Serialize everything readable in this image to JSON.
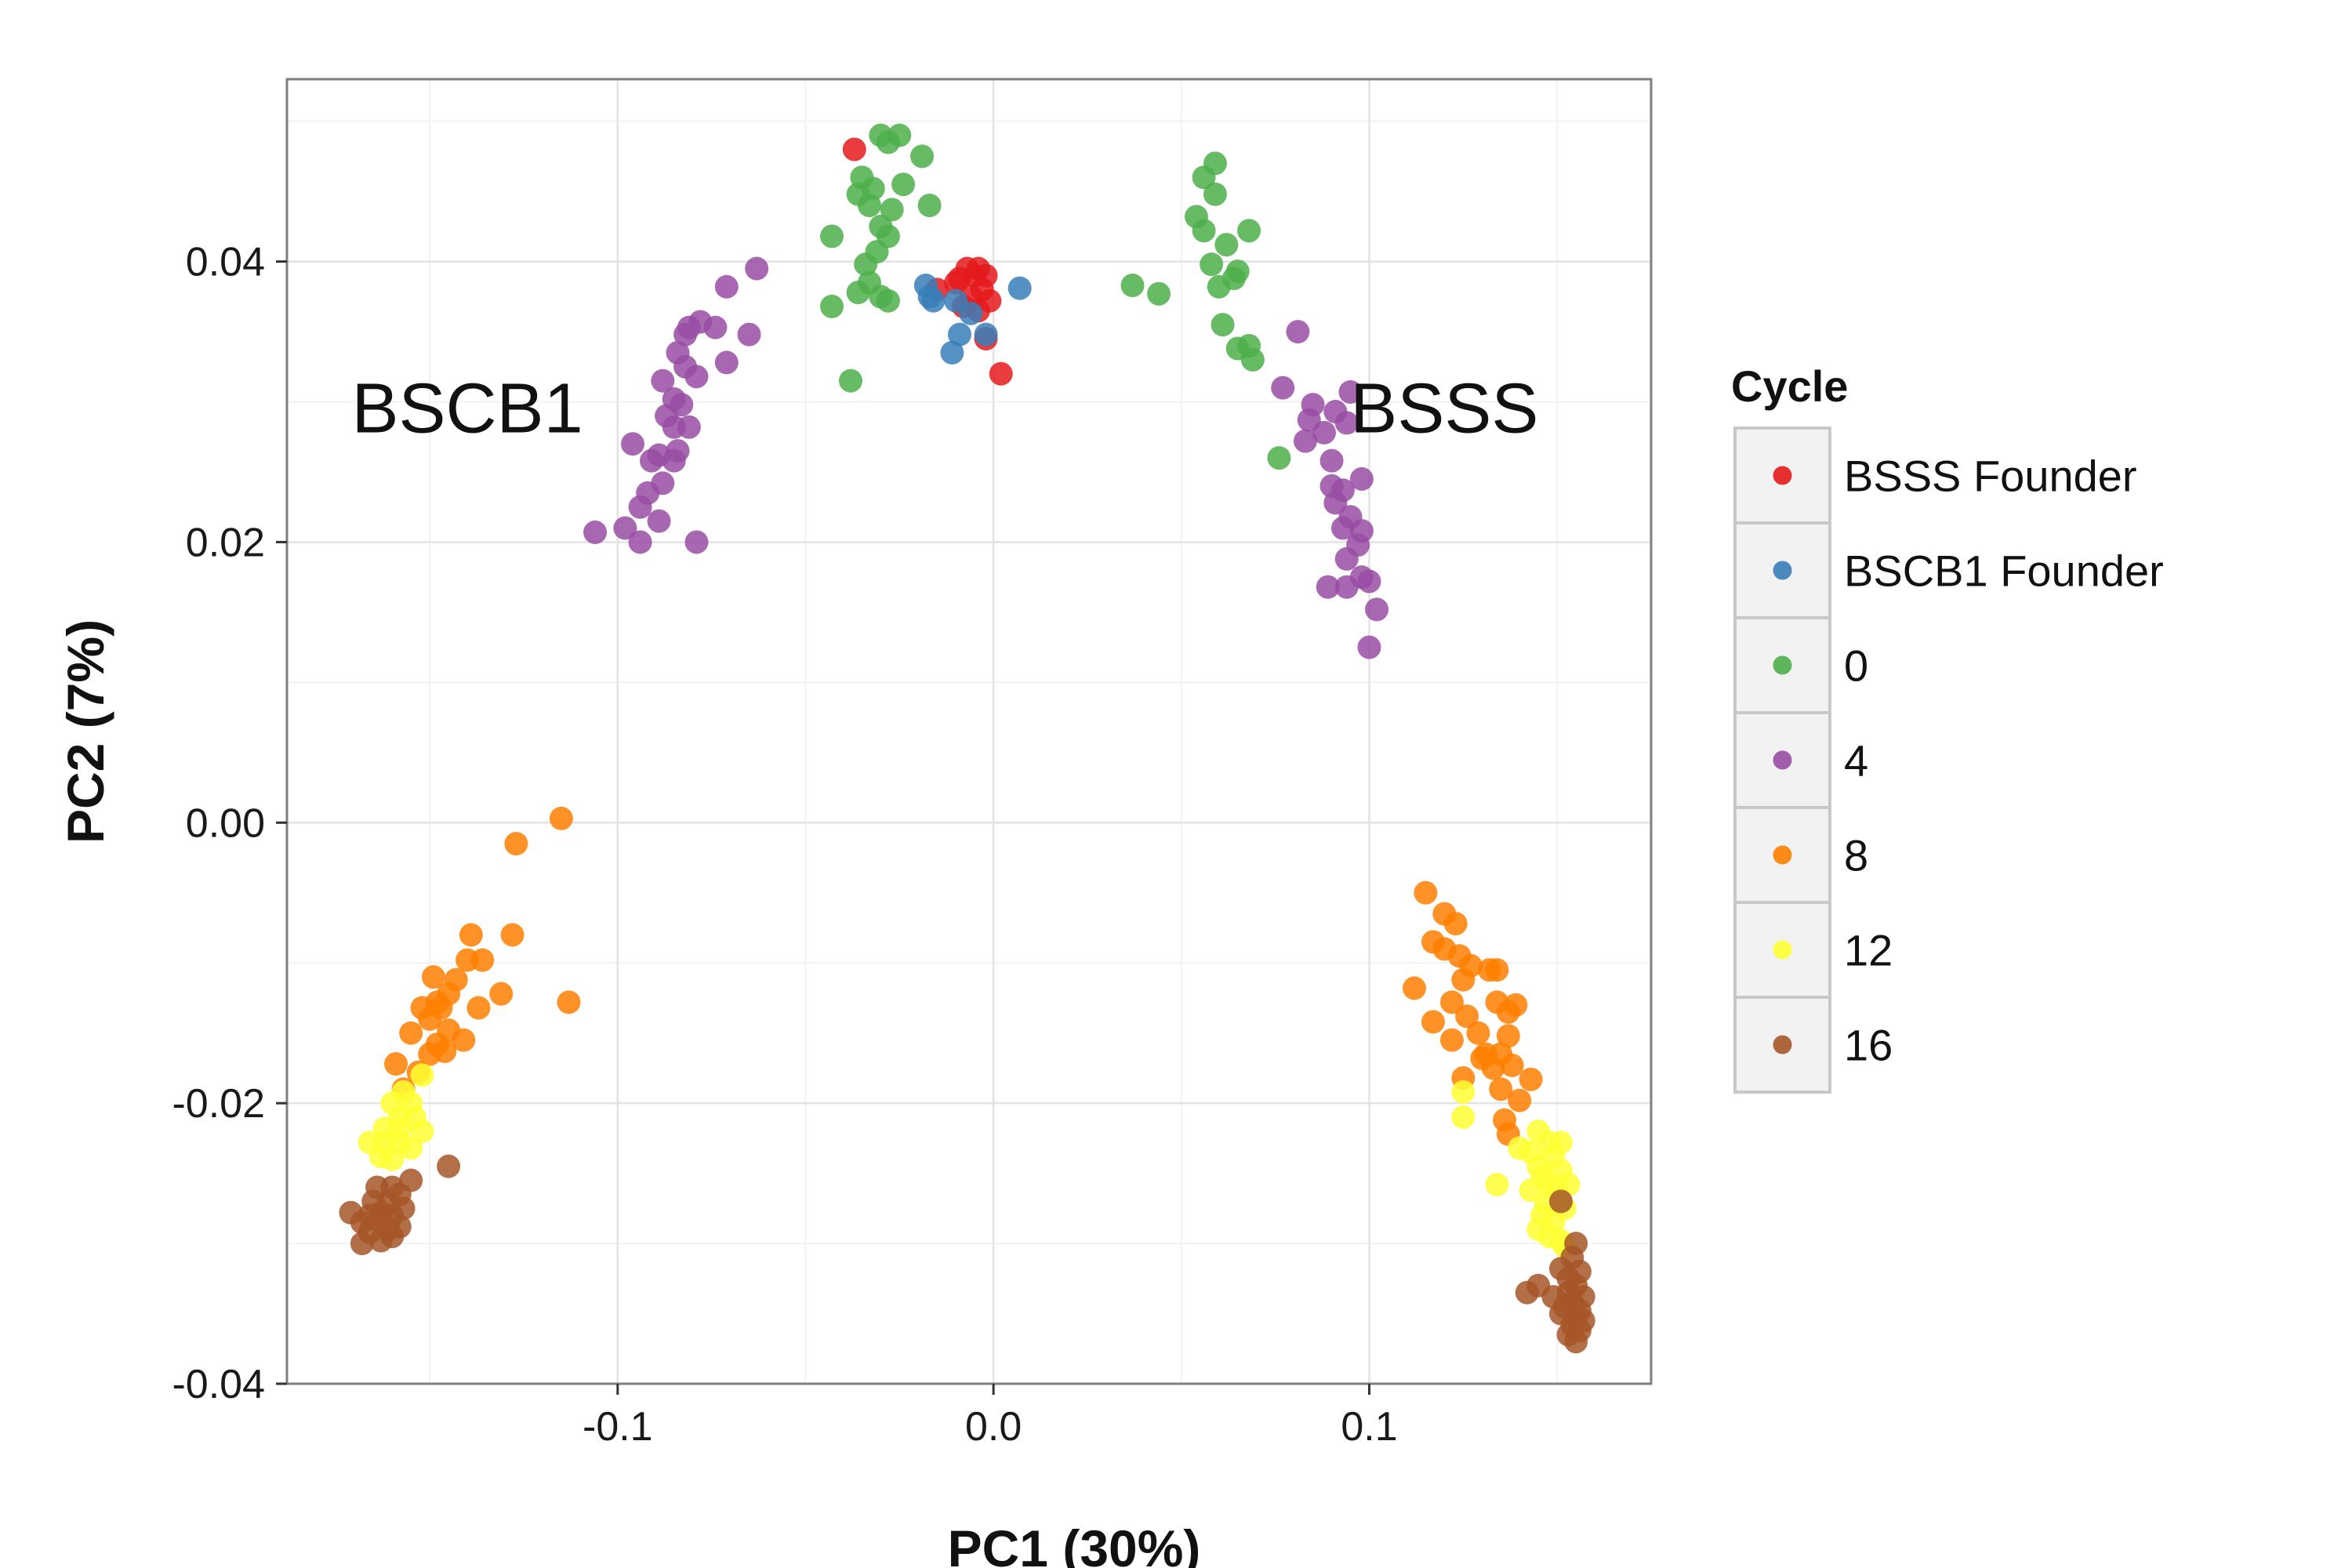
{
  "chart_data": {
    "type": "scatter",
    "title": "",
    "xlabel": "PC1 (30%)",
    "ylabel": "PC2 (7%)",
    "xlim": [
      -0.188,
      0.175
    ],
    "ylim": [
      -0.04,
      0.053
    ],
    "x_ticks": [
      {
        "value": -0.1,
        "label": "-0.1"
      },
      {
        "value": 0.0,
        "label": "0.0"
      },
      {
        "value": 0.1,
        "label": "0.1"
      }
    ],
    "y_ticks": [
      {
        "value": -0.04,
        "label": "-0.04"
      },
      {
        "value": -0.02,
        "label": "-0.02"
      },
      {
        "value": 0.0,
        "label": "0.00"
      },
      {
        "value": 0.02,
        "label": "0.02"
      },
      {
        "value": 0.04,
        "label": "0.04"
      }
    ],
    "grid": true,
    "legend": {
      "title": "Cycle",
      "placement": "right"
    },
    "annotations": [
      {
        "text": "BSCB1",
        "x": -0.14,
        "y": 0.0295
      },
      {
        "text": "BSSS",
        "x": 0.12,
        "y": 0.0295
      }
    ],
    "series": [
      {
        "name": "BSSS Founder",
        "color": "#e41a1c",
        "points": [
          [
            -0.037,
            0.048
          ],
          [
            -0.015,
            0.038
          ],
          [
            -0.01,
            0.0385
          ],
          [
            -0.007,
            0.0395
          ],
          [
            -0.005,
            0.039
          ],
          [
            -0.004,
            0.0395
          ],
          [
            -0.003,
            0.038
          ],
          [
            -0.002,
            0.039
          ],
          [
            -0.006,
            0.0375
          ],
          [
            -0.004,
            0.0365
          ],
          [
            -0.008,
            0.0368
          ],
          [
            -0.001,
            0.0372
          ],
          [
            -0.002,
            0.0345
          ],
          [
            0.002,
            0.032
          ],
          [
            -0.009,
            0.0388
          ]
        ]
      },
      {
        "name": "BSCB1 Founder",
        "color": "#377eb8",
        "points": [
          [
            -0.018,
            0.0383
          ],
          [
            -0.017,
            0.0375
          ],
          [
            -0.011,
            0.0335
          ],
          [
            -0.009,
            0.0348
          ],
          [
            -0.006,
            0.0363
          ],
          [
            -0.002,
            0.0348
          ],
          [
            0.007,
            0.0381
          ],
          [
            -0.01,
            0.0372
          ],
          [
            -0.016,
            0.0372
          ]
        ]
      },
      {
        "name": "0",
        "color": "#4daf4a",
        "points": [
          [
            -0.03,
            0.049
          ],
          [
            -0.028,
            0.0485
          ],
          [
            -0.025,
            0.049
          ],
          [
            -0.019,
            0.0475
          ],
          [
            -0.024,
            0.0455
          ],
          [
            -0.035,
            0.046
          ],
          [
            -0.036,
            0.0448
          ],
          [
            -0.033,
            0.044
          ],
          [
            -0.027,
            0.0437
          ],
          [
            -0.017,
            0.044
          ],
          [
            -0.03,
            0.0425
          ],
          [
            -0.028,
            0.0418
          ],
          [
            -0.031,
            0.0407
          ],
          [
            -0.043,
            0.0418
          ],
          [
            -0.034,
            0.0398
          ],
          [
            -0.033,
            0.0385
          ],
          [
            -0.03,
            0.0375
          ],
          [
            -0.028,
            0.0372
          ],
          [
            -0.036,
            0.0378
          ],
          [
            -0.043,
            0.0368
          ],
          [
            -0.038,
            0.0315
          ],
          [
            -0.032,
            0.0452
          ],
          [
            0.059,
            0.047
          ],
          [
            0.056,
            0.046
          ],
          [
            0.059,
            0.0448
          ],
          [
            0.054,
            0.0432
          ],
          [
            0.056,
            0.0422
          ],
          [
            0.068,
            0.0422
          ],
          [
            0.062,
            0.0412
          ],
          [
            0.058,
            0.0398
          ],
          [
            0.064,
            0.0388
          ],
          [
            0.065,
            0.0393
          ],
          [
            0.06,
            0.0382
          ],
          [
            0.037,
            0.0383
          ],
          [
            0.044,
            0.0377
          ],
          [
            0.061,
            0.0355
          ],
          [
            0.065,
            0.0338
          ],
          [
            0.068,
            0.034
          ],
          [
            0.069,
            0.033
          ],
          [
            0.076,
            0.026
          ]
        ]
      },
      {
        "name": "4",
        "color": "#984ea3",
        "points": [
          [
            -0.063,
            0.0395
          ],
          [
            -0.071,
            0.0382
          ],
          [
            -0.078,
            0.0357
          ],
          [
            -0.081,
            0.0353
          ],
          [
            -0.074,
            0.0353
          ],
          [
            -0.065,
            0.0348
          ],
          [
            -0.082,
            0.0348
          ],
          [
            -0.084,
            0.0335
          ],
          [
            -0.082,
            0.0325
          ],
          [
            -0.079,
            0.0318
          ],
          [
            -0.071,
            0.0328
          ],
          [
            -0.088,
            0.0315
          ],
          [
            -0.085,
            0.0302
          ],
          [
            -0.083,
            0.0298
          ],
          [
            -0.087,
            0.029
          ],
          [
            -0.085,
            0.0282
          ],
          [
            -0.081,
            0.0282
          ],
          [
            -0.084,
            0.0265
          ],
          [
            -0.089,
            0.0262
          ],
          [
            -0.096,
            0.027
          ],
          [
            -0.091,
            0.0258
          ],
          [
            -0.085,
            0.0258
          ],
          [
            -0.088,
            0.0242
          ],
          [
            -0.092,
            0.0235
          ],
          [
            -0.094,
            0.0225
          ],
          [
            -0.089,
            0.0215
          ],
          [
            -0.098,
            0.021
          ],
          [
            -0.106,
            0.0207
          ],
          [
            -0.094,
            0.02
          ],
          [
            -0.079,
            0.02
          ],
          [
            0.081,
            0.035
          ],
          [
            0.077,
            0.031
          ],
          [
            0.095,
            0.0307
          ],
          [
            0.085,
            0.0298
          ],
          [
            0.091,
            0.0293
          ],
          [
            0.084,
            0.0287
          ],
          [
            0.094,
            0.0285
          ],
          [
            0.088,
            0.0278
          ],
          [
            0.083,
            0.0272
          ],
          [
            0.09,
            0.0258
          ],
          [
            0.09,
            0.024
          ],
          [
            0.093,
            0.0237
          ],
          [
            0.098,
            0.0245
          ],
          [
            0.091,
            0.0228
          ],
          [
            0.095,
            0.0218
          ],
          [
            0.093,
            0.021
          ],
          [
            0.098,
            0.0208
          ],
          [
            0.097,
            0.0198
          ],
          [
            0.094,
            0.0188
          ],
          [
            0.098,
            0.0175
          ],
          [
            0.089,
            0.0168
          ],
          [
            0.094,
            0.0168
          ],
          [
            0.1,
            0.0172
          ],
          [
            0.102,
            0.0152
          ],
          [
            0.1,
            0.0125
          ]
        ]
      },
      {
        "name": "8",
        "color": "#ff7f00",
        "points": [
          [
            -0.115,
            0.0003
          ],
          [
            -0.127,
            -0.0015
          ],
          [
            -0.139,
            -0.008
          ],
          [
            -0.128,
            -0.008
          ],
          [
            -0.136,
            -0.0098
          ],
          [
            -0.14,
            -0.0098
          ],
          [
            -0.149,
            -0.011
          ],
          [
            -0.143,
            -0.0112
          ],
          [
            -0.131,
            -0.0122
          ],
          [
            -0.145,
            -0.0122
          ],
          [
            -0.148,
            -0.0128
          ],
          [
            -0.152,
            -0.0132
          ],
          [
            -0.147,
            -0.0132
          ],
          [
            -0.137,
            -0.0132
          ],
          [
            -0.113,
            -0.0128
          ],
          [
            -0.15,
            -0.014
          ],
          [
            -0.145,
            -0.0148
          ],
          [
            -0.155,
            -0.015
          ],
          [
            -0.148,
            -0.0158
          ],
          [
            -0.141,
            -0.0155
          ],
          [
            -0.146,
            -0.0163
          ],
          [
            -0.15,
            -0.0165
          ],
          [
            -0.159,
            -0.0172
          ],
          [
            -0.153,
            -0.0178
          ],
          [
            -0.157,
            -0.019
          ],
          [
            0.115,
            -0.005
          ],
          [
            0.12,
            -0.0065
          ],
          [
            0.123,
            -0.0072
          ],
          [
            0.117,
            -0.0085
          ],
          [
            0.12,
            -0.009
          ],
          [
            0.124,
            -0.0095
          ],
          [
            0.127,
            -0.0102
          ],
          [
            0.132,
            -0.0105
          ],
          [
            0.134,
            -0.0105
          ],
          [
            0.125,
            -0.0112
          ],
          [
            0.112,
            -0.0118
          ],
          [
            0.122,
            -0.0128
          ],
          [
            0.126,
            -0.0138
          ],
          [
            0.134,
            -0.0128
          ],
          [
            0.139,
            -0.013
          ],
          [
            0.137,
            -0.0135
          ],
          [
            0.117,
            -0.0142
          ],
          [
            0.129,
            -0.015
          ],
          [
            0.137,
            -0.0152
          ],
          [
            0.122,
            -0.0155
          ],
          [
            0.131,
            -0.0165
          ],
          [
            0.135,
            -0.0165
          ],
          [
            0.13,
            -0.0168
          ],
          [
            0.133,
            -0.0175
          ],
          [
            0.138,
            -0.0173
          ],
          [
            0.125,
            -0.0182
          ],
          [
            0.143,
            -0.0183
          ],
          [
            0.135,
            -0.019
          ],
          [
            0.14,
            -0.0198
          ],
          [
            0.136,
            -0.0212
          ],
          [
            0.137,
            -0.0222
          ]
        ]
      },
      {
        "name": "12",
        "color": "#ffff33",
        "points": [
          [
            -0.152,
            -0.018
          ],
          [
            -0.157,
            -0.0192
          ],
          [
            -0.16,
            -0.02
          ],
          [
            -0.155,
            -0.02
          ],
          [
            -0.158,
            -0.021
          ],
          [
            -0.154,
            -0.021
          ],
          [
            -0.162,
            -0.0218
          ],
          [
            -0.158,
            -0.0218
          ],
          [
            -0.152,
            -0.022
          ],
          [
            -0.166,
            -0.0228
          ],
          [
            -0.162,
            -0.0228
          ],
          [
            -0.158,
            -0.0228
          ],
          [
            -0.155,
            -0.0232
          ],
          [
            -0.163,
            -0.0238
          ],
          [
            -0.16,
            -0.024
          ],
          [
            0.125,
            -0.0192
          ],
          [
            0.125,
            -0.021
          ],
          [
            0.145,
            -0.022
          ],
          [
            0.148,
            -0.0228
          ],
          [
            0.151,
            -0.0228
          ],
          [
            0.14,
            -0.0232
          ],
          [
            0.143,
            -0.0235
          ],
          [
            0.149,
            -0.0238
          ],
          [
            0.145,
            -0.0245
          ],
          [
            0.151,
            -0.0248
          ],
          [
            0.146,
            -0.0252
          ],
          [
            0.148,
            -0.0258
          ],
          [
            0.153,
            -0.0258
          ],
          [
            0.143,
            -0.0262
          ],
          [
            0.15,
            -0.0262
          ],
          [
            0.134,
            -0.0258
          ],
          [
            0.147,
            -0.0272
          ],
          [
            0.152,
            -0.0275
          ],
          [
            0.146,
            -0.028
          ],
          [
            0.149,
            -0.0285
          ],
          [
            0.145,
            -0.029
          ],
          [
            0.148,
            -0.0295
          ],
          [
            0.151,
            -0.0298
          ],
          [
            0.152,
            -0.0302
          ]
        ]
      },
      {
        "name": "16",
        "color": "#a65628",
        "points": [
          [
            -0.145,
            -0.0245
          ],
          [
            -0.155,
            -0.0255
          ],
          [
            -0.16,
            -0.026
          ],
          [
            -0.164,
            -0.026
          ],
          [
            -0.158,
            -0.0265
          ],
          [
            -0.165,
            -0.027
          ],
          [
            -0.161,
            -0.0272
          ],
          [
            -0.157,
            -0.0275
          ],
          [
            -0.163,
            -0.0278
          ],
          [
            -0.166,
            -0.028
          ],
          [
            -0.16,
            -0.028
          ],
          [
            -0.171,
            -0.0278
          ],
          [
            -0.168,
            -0.0285
          ],
          [
            -0.163,
            -0.0285
          ],
          [
            -0.158,
            -0.0288
          ],
          [
            -0.161,
            -0.029
          ],
          [
            -0.166,
            -0.0292
          ],
          [
            -0.16,
            -0.0295
          ],
          [
            -0.163,
            -0.0298
          ],
          [
            -0.168,
            -0.03
          ],
          [
            0.151,
            -0.027
          ],
          [
            0.155,
            -0.03
          ],
          [
            0.154,
            -0.031
          ],
          [
            0.151,
            -0.0318
          ],
          [
            0.156,
            -0.032
          ],
          [
            0.153,
            -0.0325
          ],
          [
            0.155,
            -0.033
          ],
          [
            0.145,
            -0.033
          ],
          [
            0.153,
            -0.0335
          ],
          [
            0.157,
            -0.0338
          ],
          [
            0.154,
            -0.0342
          ],
          [
            0.152,
            -0.0345
          ],
          [
            0.156,
            -0.0348
          ],
          [
            0.151,
            -0.035
          ],
          [
            0.155,
            -0.0352
          ],
          [
            0.157,
            -0.0355
          ],
          [
            0.154,
            -0.0358
          ],
          [
            0.156,
            -0.0362
          ],
          [
            0.153,
            -0.0365
          ],
          [
            0.155,
            -0.037
          ],
          [
            0.142,
            -0.0335
          ],
          [
            0.149,
            -0.0338
          ]
        ]
      }
    ]
  }
}
